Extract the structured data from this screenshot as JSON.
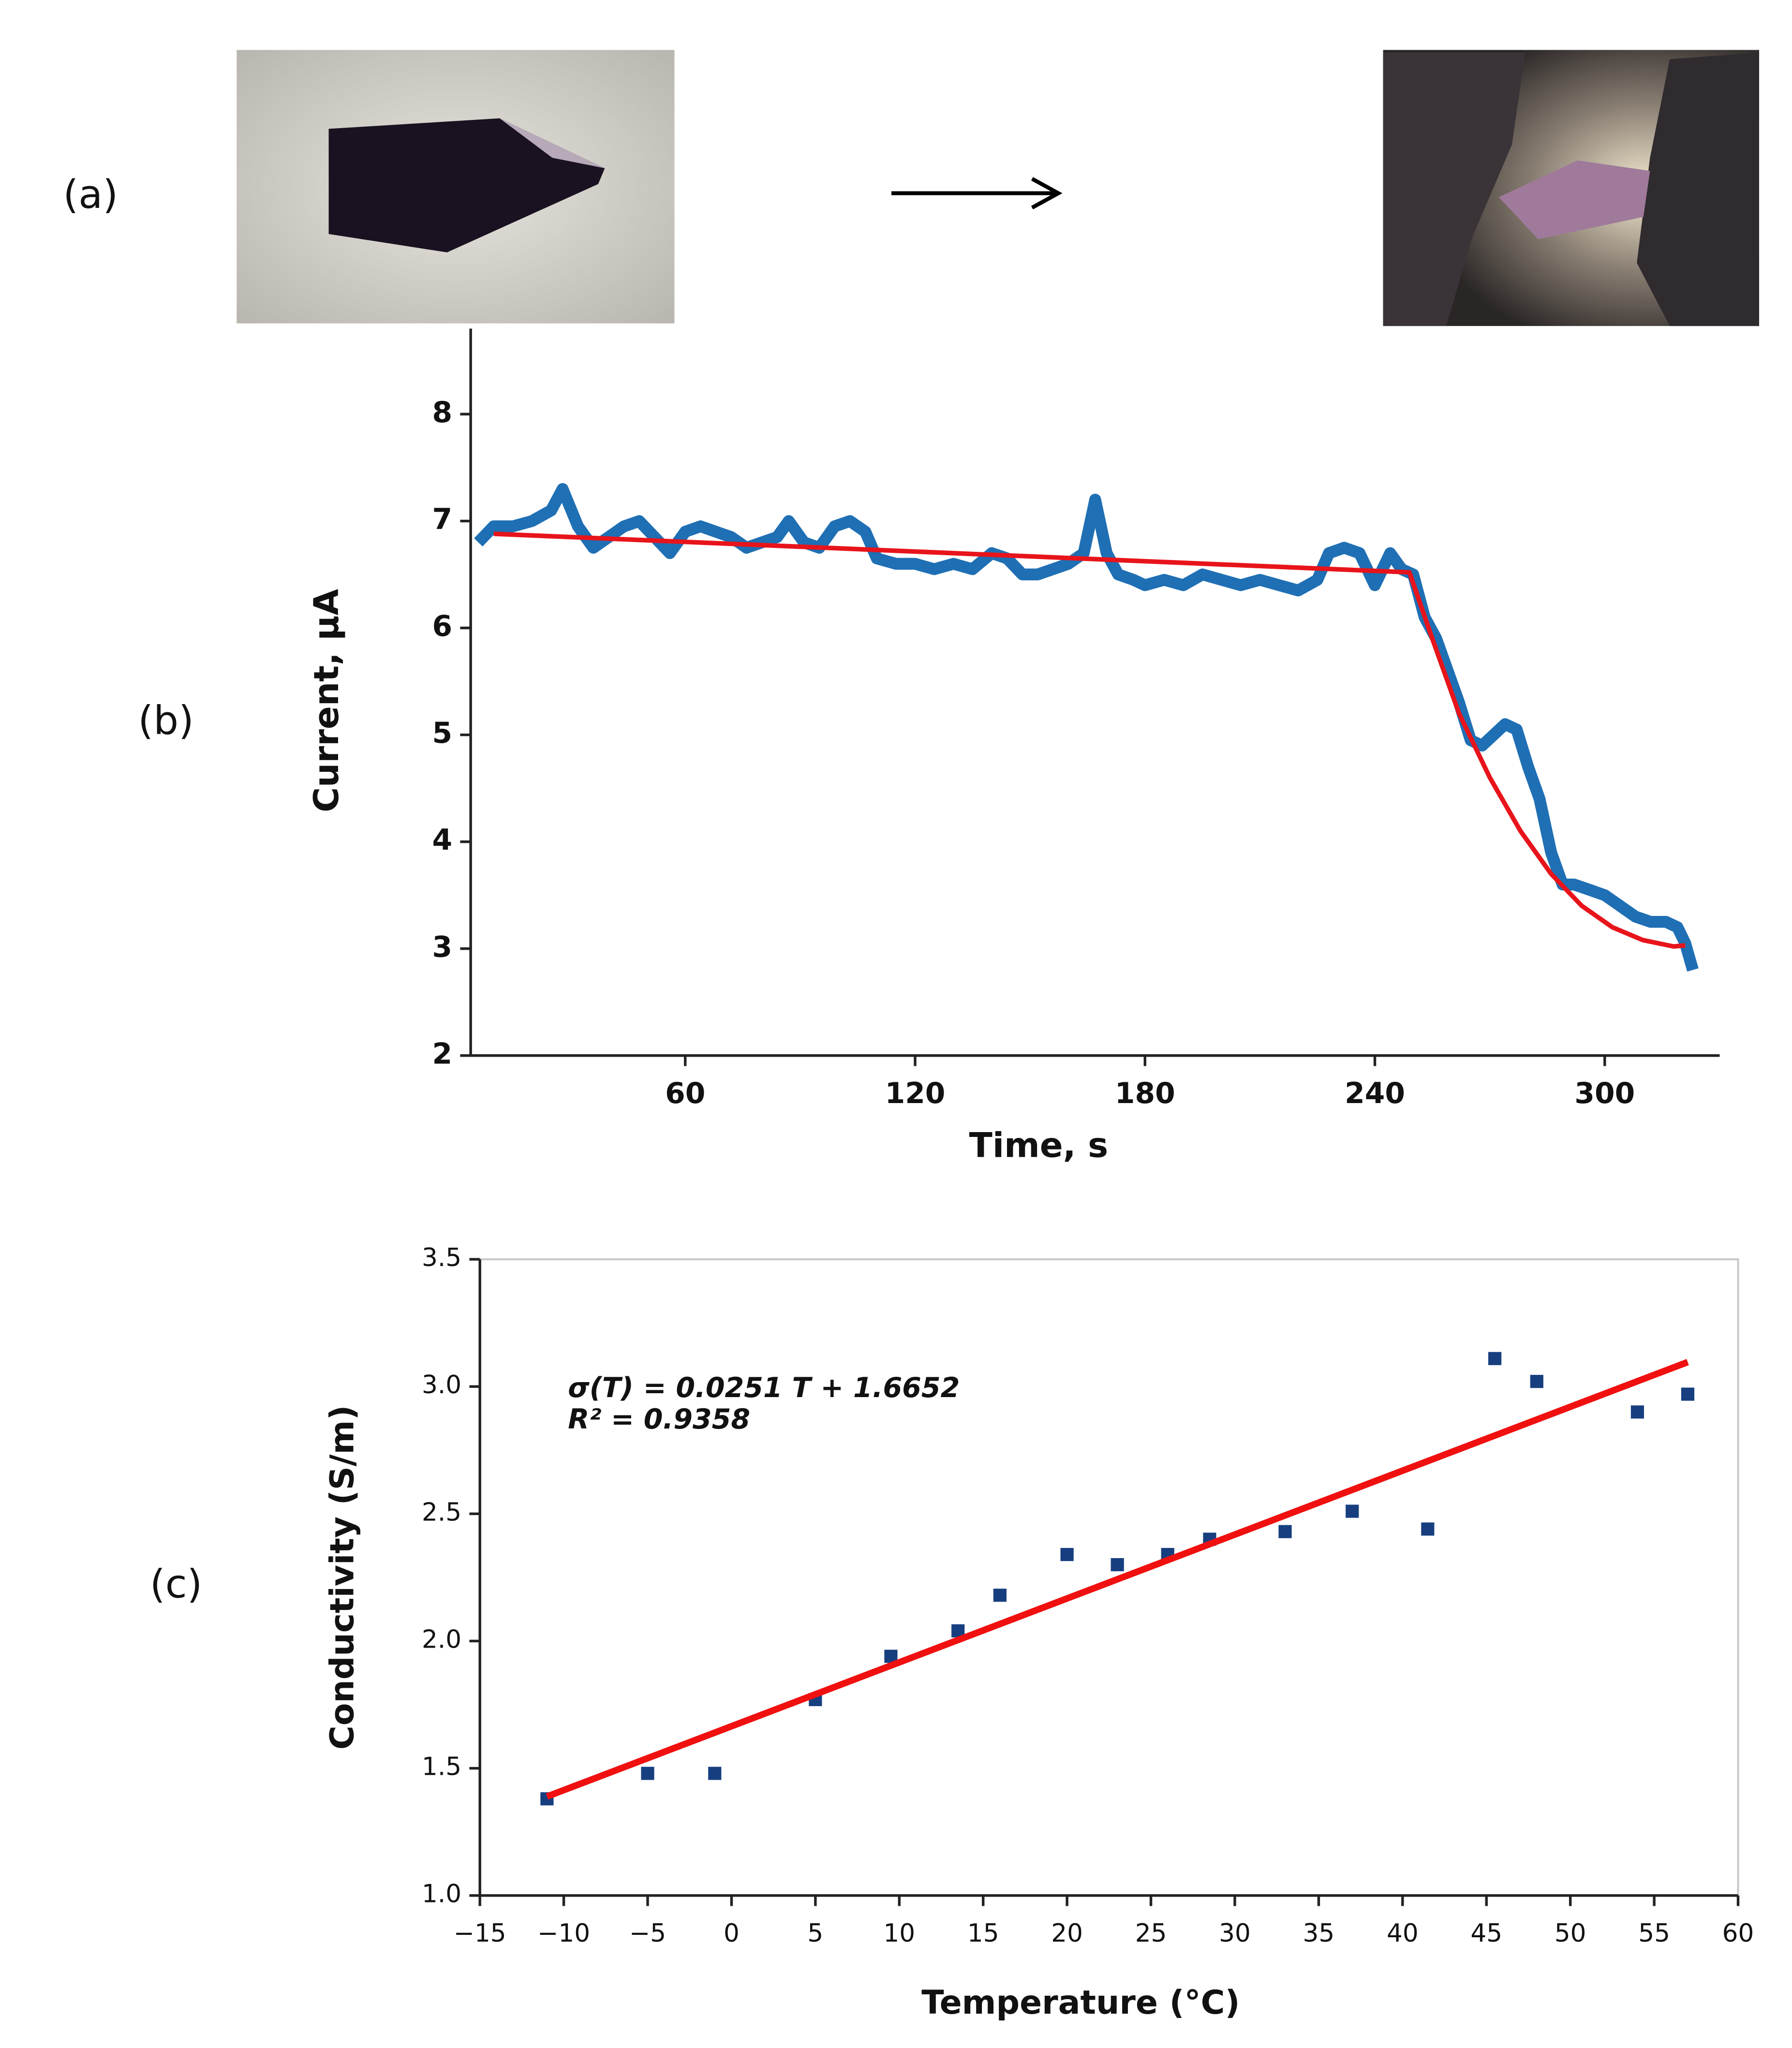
{
  "panel_labels": [
    "(a)",
    "(b)",
    "(c)"
  ],
  "chart_data": [
    {
      "type": "line",
      "x_label": "Time, s",
      "y_label": "Current, μA",
      "xlim": [
        4,
        330
      ],
      "xticks": [
        60,
        120,
        180,
        240,
        300
      ],
      "ylim": [
        2,
        8.8
      ],
      "yticks": [
        2,
        3,
        4,
        5,
        6,
        7,
        8
      ],
      "series": [
        {
          "color": "#1f6fb4",
          "x": [
            6,
            10,
            15,
            20,
            25,
            28,
            32,
            36,
            40,
            44,
            48,
            52,
            56,
            60,
            64,
            68,
            72,
            76,
            80,
            84,
            87,
            91,
            95,
            99,
            103,
            107,
            110,
            115,
            120,
            125,
            130,
            135,
            140,
            144,
            148,
            152,
            156,
            160,
            164,
            167,
            170,
            173,
            177,
            180,
            185,
            190,
            195,
            200,
            205,
            210,
            215,
            220,
            225,
            228,
            232,
            236,
            240,
            244,
            247,
            250,
            253,
            256,
            259,
            262,
            265,
            268,
            271,
            274,
            277,
            280,
            283,
            286,
            289,
            292,
            296,
            300,
            304,
            308,
            312,
            316,
            319,
            321,
            323
          ],
          "values": [
            6.8,
            6.95,
            6.95,
            7.0,
            7.1,
            7.3,
            6.95,
            6.75,
            6.85,
            6.95,
            7.0,
            6.85,
            6.7,
            6.9,
            6.95,
            6.9,
            6.85,
            6.75,
            6.8,
            6.85,
            7.0,
            6.8,
            6.75,
            6.95,
            7.0,
            6.9,
            6.65,
            6.6,
            6.6,
            6.55,
            6.6,
            6.55,
            6.7,
            6.65,
            6.5,
            6.5,
            6.55,
            6.6,
            6.7,
            7.2,
            6.7,
            6.5,
            6.45,
            6.4,
            6.45,
            6.4,
            6.5,
            6.45,
            6.4,
            6.45,
            6.4,
            6.35,
            6.45,
            6.7,
            6.75,
            6.7,
            6.4,
            6.7,
            6.55,
            6.5,
            6.1,
            5.9,
            5.6,
            5.3,
            4.95,
            4.9,
            5.0,
            5.1,
            5.05,
            4.7,
            4.4,
            3.9,
            3.6,
            3.6,
            3.55,
            3.5,
            3.4,
            3.3,
            3.25,
            3.25,
            3.2,
            3.05,
            2.8
          ]
        },
        {
          "color": "#e8141b",
          "x": [
            10,
            249,
            255,
            262,
            270,
            278,
            286,
            294,
            302,
            310,
            318,
            321
          ],
          "values": [
            6.88,
            6.52,
            5.9,
            5.2,
            4.6,
            4.1,
            3.7,
            3.4,
            3.2,
            3.08,
            3.02,
            3.03
          ]
        }
      ]
    },
    {
      "type": "scatter",
      "x_label": "Temperature (°C)",
      "y_label": "Conductivity (S/m)",
      "annotations": [
        "σ(T) = 0.0251 T + 1.6652",
        "R² = 0.9358"
      ],
      "xlim": [
        -15,
        60
      ],
      "xticks": [
        {
          "value": -15,
          "label": "−15"
        },
        {
          "value": -10,
          "label": "−10"
        },
        {
          "value": -5,
          "label": "−5"
        },
        0,
        5,
        10,
        15,
        20,
        25,
        30,
        35,
        40,
        45,
        50,
        55,
        60
      ],
      "ylim": [
        1,
        3.5
      ],
      "yticks": [
        {
          "value": 1,
          "label": "1.0"
        },
        1.5,
        {
          "value": 2,
          "label": "2.0"
        },
        2.5,
        {
          "value": 3,
          "label": "3.0"
        },
        3.5
      ],
      "series": [
        {
          "type": "scatter",
          "color": "#173f80",
          "x": [
            -11,
            -5,
            -1,
            5,
            9.5,
            13.5,
            16,
            20,
            23,
            26,
            28.5,
            33,
            37,
            41.5,
            45.5,
            48,
            54,
            57
          ],
          "values": [
            1.38,
            1.48,
            1.48,
            1.77,
            1.94,
            2.04,
            2.18,
            2.34,
            2.3,
            2.34,
            2.4,
            2.43,
            2.51,
            2.44,
            3.11,
            3.02,
            2.9,
            2.97
          ]
        },
        {
          "type": "line",
          "color": "#f01010",
          "x": [
            -11,
            57
          ],
          "values": [
            1.389,
            3.096
          ]
        }
      ]
    }
  ]
}
